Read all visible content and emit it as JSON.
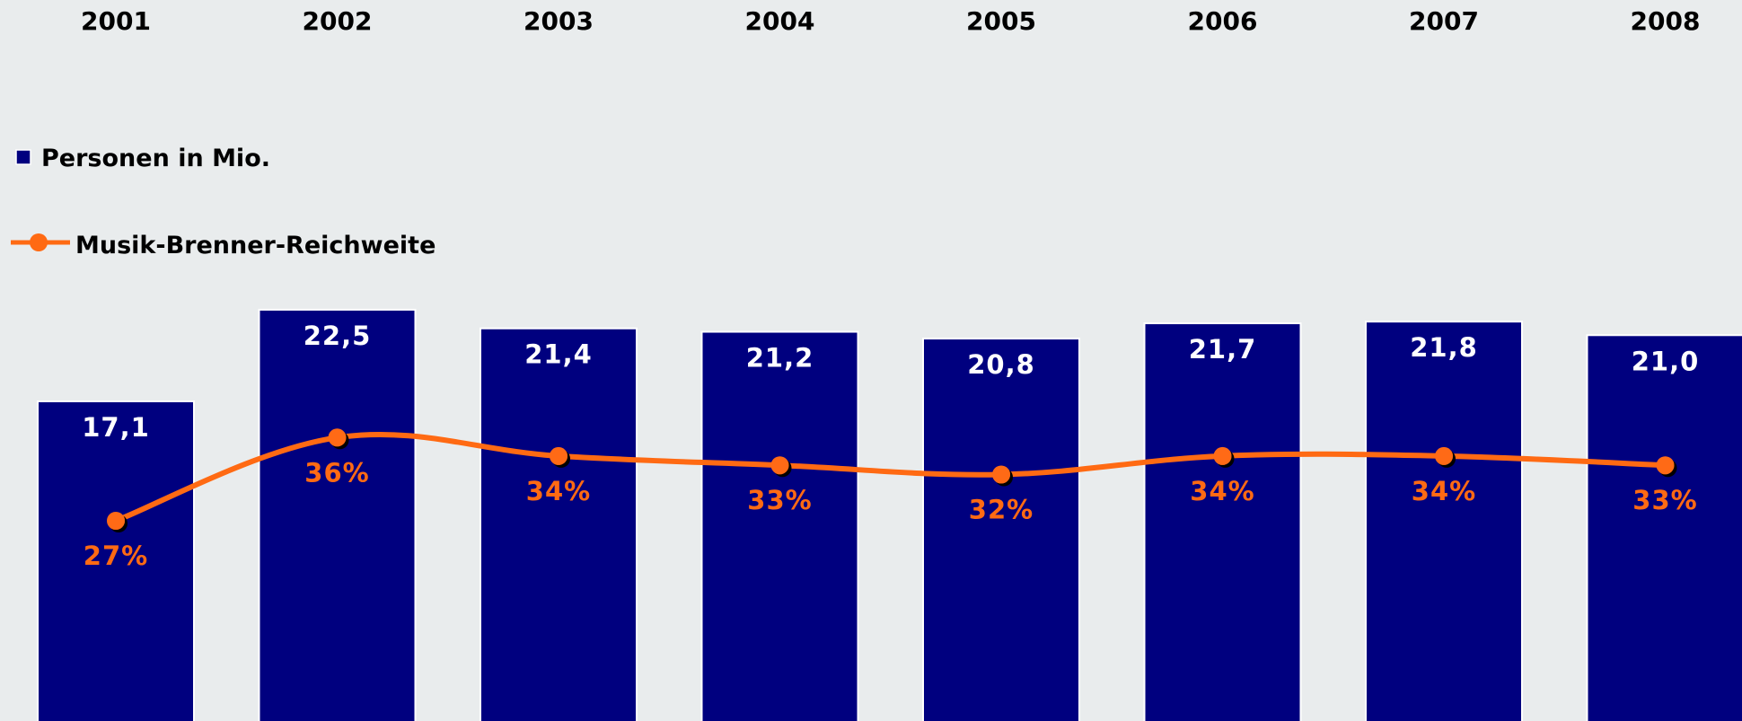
{
  "chart_data": {
    "type": "bar",
    "categories": [
      "2001",
      "2002",
      "2003",
      "2004",
      "2005",
      "2006",
      "2007",
      "2008"
    ],
    "series": [
      {
        "name": "Personen in Mio.",
        "kind": "bar",
        "color": "#00007f",
        "values": [
          17.1,
          22.5,
          21.4,
          21.2,
          20.8,
          21.7,
          21.8,
          21.0
        ],
        "labels": [
          "17,1",
          "22,5",
          "21,4",
          "21,2",
          "20,8",
          "21,7",
          "21,8",
          "21,0"
        ]
      },
      {
        "name": "Musik-Brenner-Reichweite",
        "kind": "line",
        "color": "#ff6a13",
        "values": [
          27,
          36,
          34,
          33,
          32,
          34,
          34,
          33
        ],
        "labels": [
          "27%",
          "36%",
          "34%",
          "33%",
          "32%",
          "34%",
          "34%",
          "33%"
        ]
      }
    ],
    "legend_position": "top-left",
    "category_labels_position": "top",
    "grid": false,
    "title": "",
    "xlabel": "",
    "ylabel": ""
  }
}
